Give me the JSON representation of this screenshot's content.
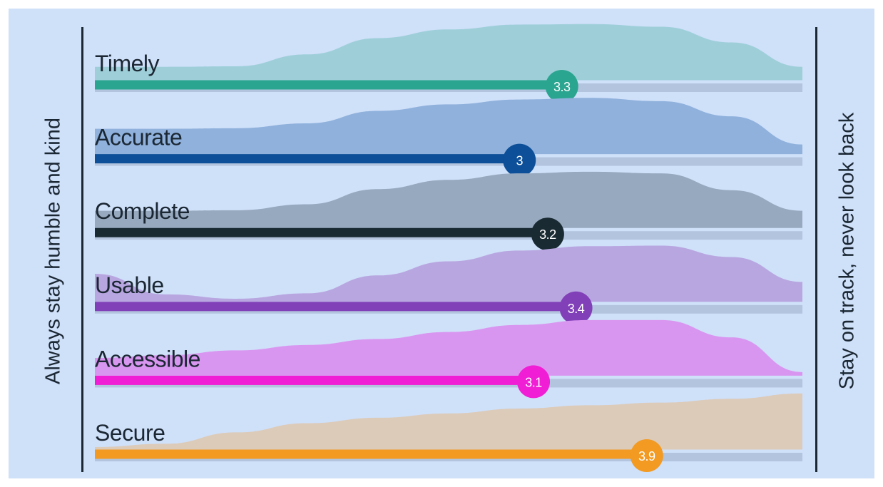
{
  "left_caption": "Always stay humble and kind",
  "right_caption": "Stay on track, never look back",
  "chart_data": {
    "type": "bar",
    "categories": [
      "Timely",
      "Accurate",
      "Complete",
      "Usable",
      "Accessible",
      "Secure"
    ],
    "values": [
      3.3,
      3,
      3.2,
      3.4,
      3.1,
      3.9
    ],
    "value_labels": [
      "3.3",
      "3",
      "3.2",
      "3.4",
      "3.1",
      "3.9"
    ],
    "xlim": [
      0,
      5
    ],
    "grid": false,
    "colors": {
      "Timely": {
        "bar": "#2aa58f",
        "ridge": "#9ecfd9"
      },
      "Accurate": {
        "bar": "#0d4f98",
        "ridge": "#8fb1dc"
      },
      "Complete": {
        "bar": "#1a2a33",
        "ridge": "#97a9be"
      },
      "Usable": {
        "bar": "#8140b8",
        "ridge": "#b8a6e0"
      },
      "Accessible": {
        "bar": "#f01ed4",
        "ridge": "#d996f0"
      },
      "Secure": {
        "bar": "#f29a21",
        "ridge": "#dccbb9"
      }
    },
    "track_color": "#b2c4de",
    "ridge_profiles": {
      "Timely": [
        0.21,
        0.21,
        0.22,
        0.44,
        0.74,
        0.9,
        0.99,
        1.0,
        0.95,
        0.66,
        0.21
      ],
      "Accurate": [
        0.43,
        0.43,
        0.44,
        0.53,
        0.76,
        0.88,
        0.97,
        1.0,
        0.94,
        0.66,
        0.14
      ],
      "Complete": [
        0.28,
        0.28,
        0.29,
        0.4,
        0.68,
        0.85,
        0.97,
        1.0,
        0.97,
        0.66,
        0.28
      ],
      "Usable": [
        0.48,
        0.1,
        0.02,
        0.12,
        0.45,
        0.71,
        0.91,
        0.99,
        1.0,
        0.79,
        0.33
      ],
      "Accessible": [
        0.29,
        0.34,
        0.43,
        0.53,
        0.64,
        0.77,
        0.9,
        0.99,
        0.99,
        0.67,
        0.03
      ],
      "Secure": [
        0.01,
        0.07,
        0.28,
        0.45,
        0.55,
        0.63,
        0.72,
        0.78,
        0.83,
        0.9,
        1.0
      ]
    }
  }
}
